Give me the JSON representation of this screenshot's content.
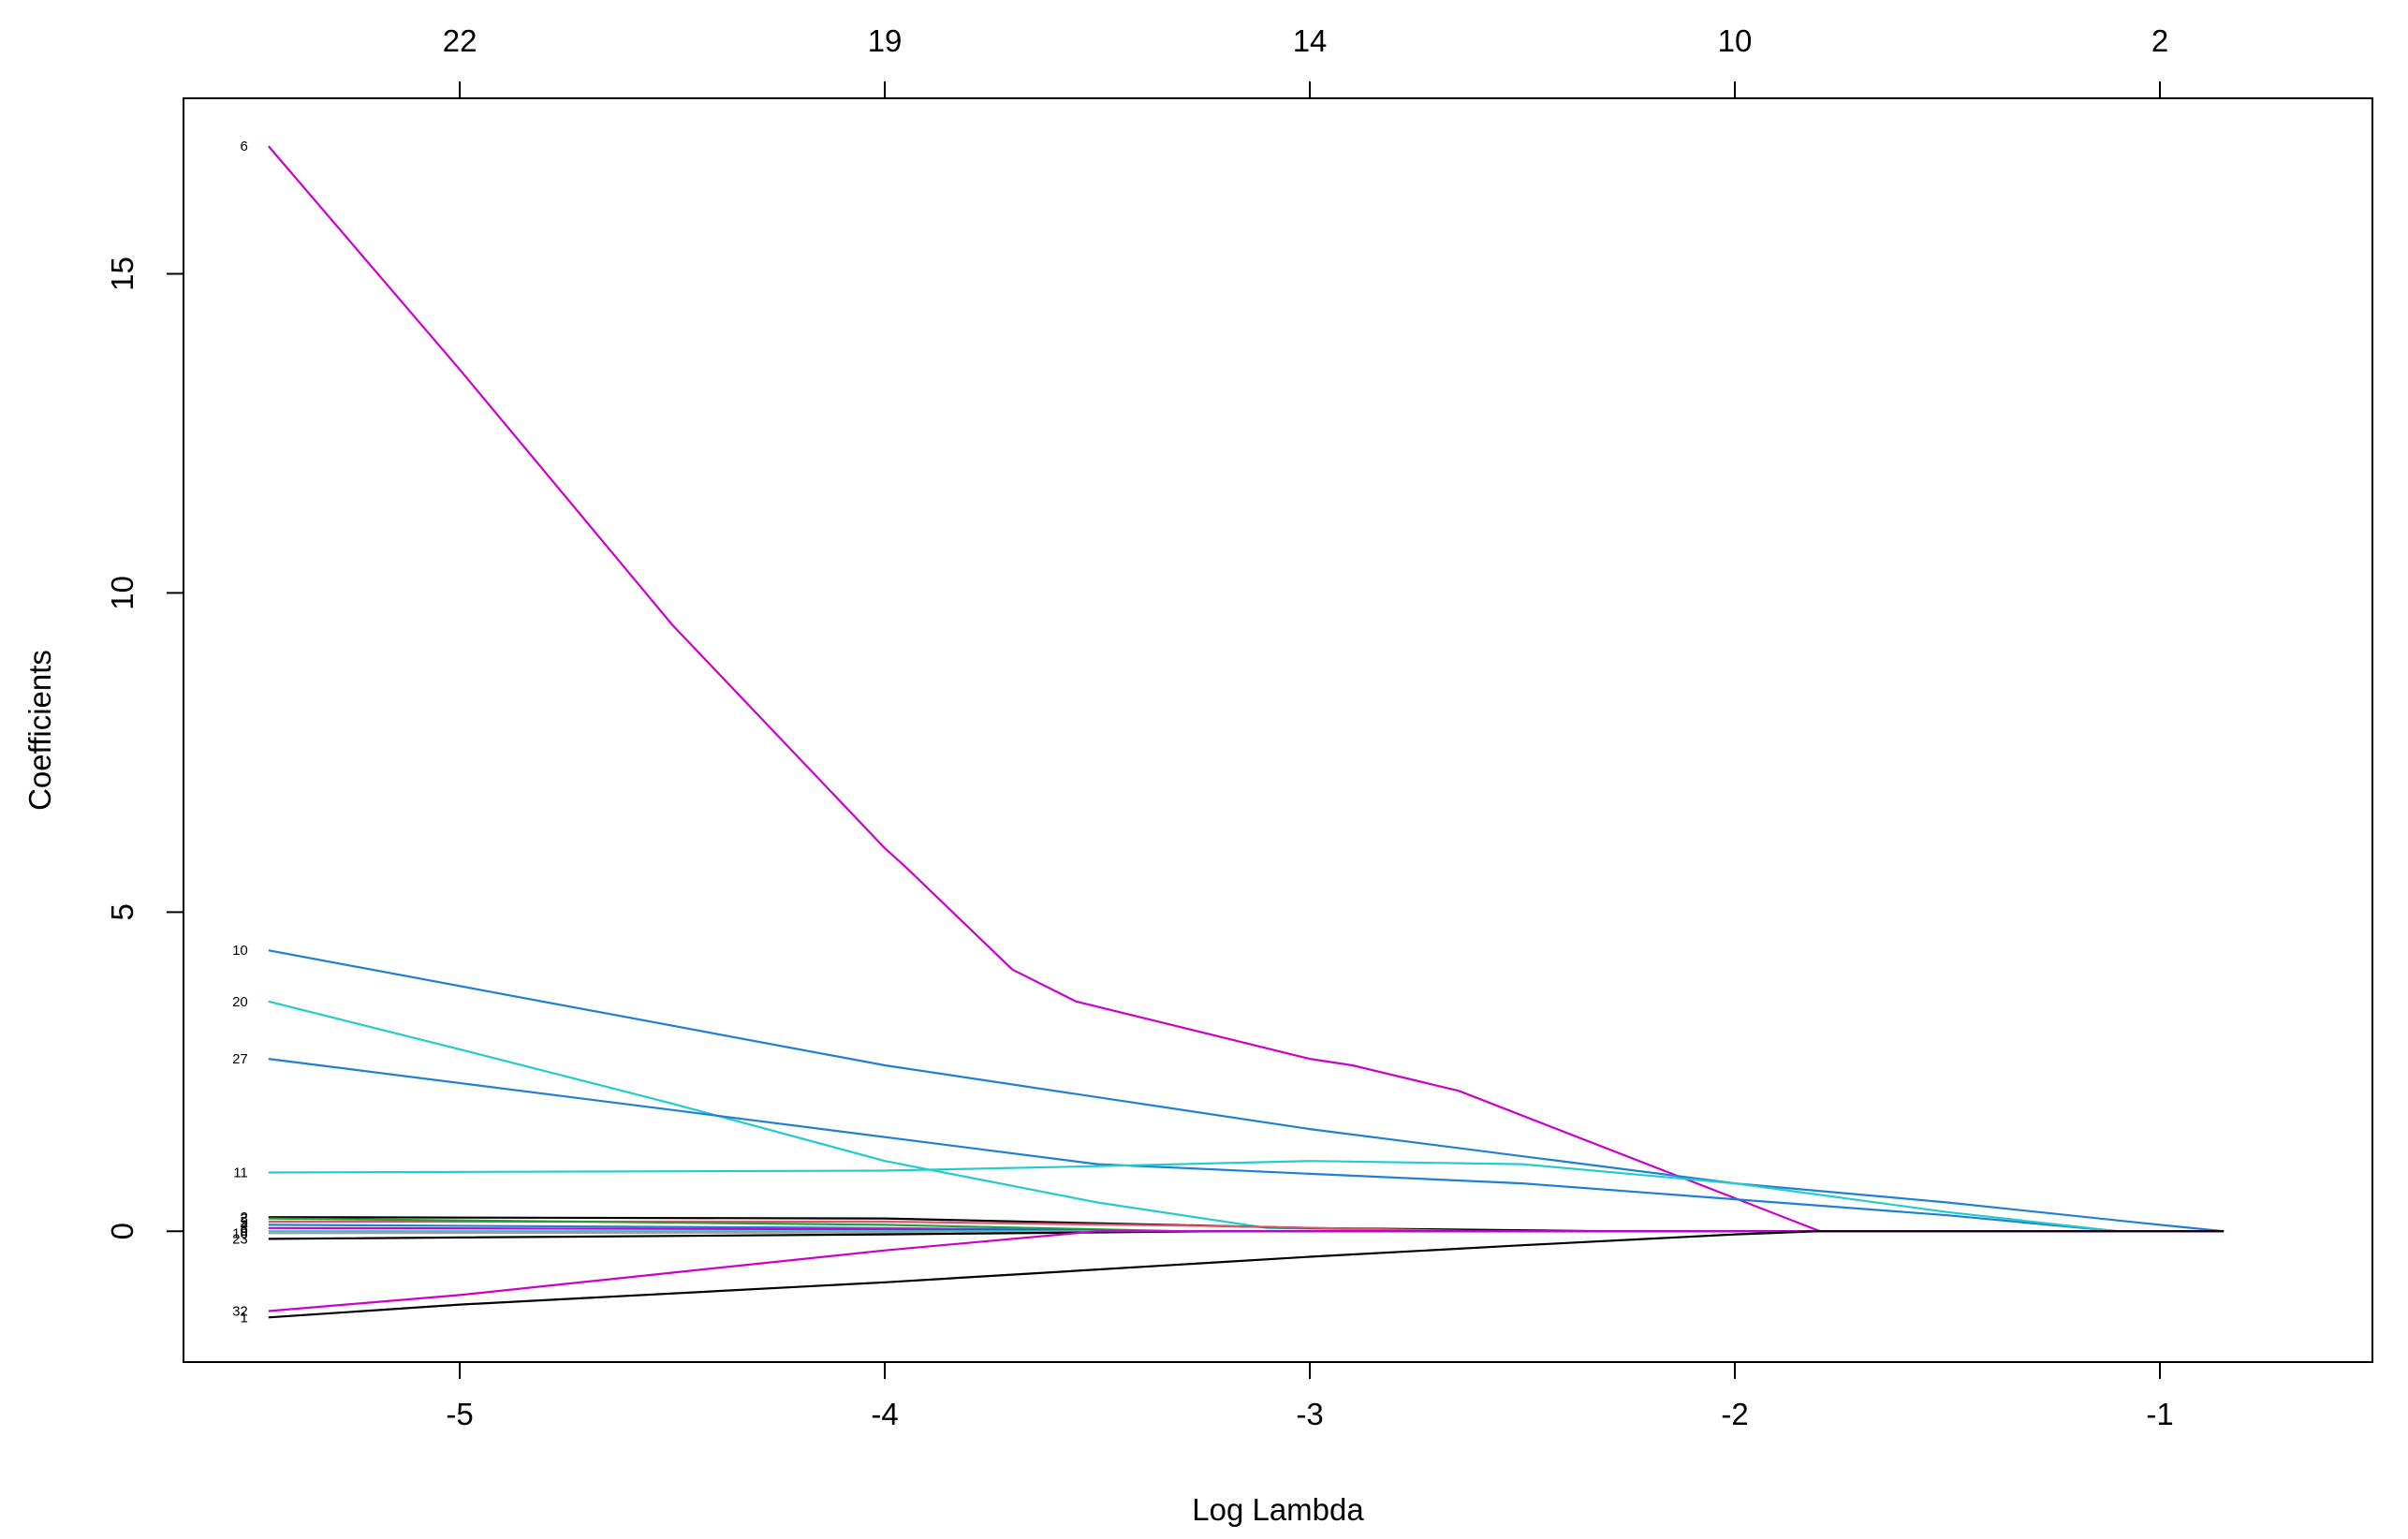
{
  "chart_data": {
    "type": "line",
    "title": "",
    "xlabel": "Log Lambda",
    "ylabel": "Coefficients",
    "xlim": [
      -5.65,
      -0.5
    ],
    "ylim": [
      -2.05,
      17.75
    ],
    "grid": false,
    "legend": "none",
    "x_ticks": [
      -5,
      -4,
      -3,
      -2,
      -1
    ],
    "x_tick_labels": [
      "-5",
      "-4",
      "-3",
      "-2",
      "-1"
    ],
    "y_ticks": [
      0,
      5,
      10,
      15
    ],
    "y_tick_labels": [
      "0",
      "5",
      "10",
      "15"
    ],
    "top_axis": {
      "at": [
        -5,
        -4,
        -3,
        -2,
        -1
      ],
      "labels": [
        "22",
        "19",
        "14",
        "10",
        "2"
      ]
    },
    "series": [
      {
        "label": "6",
        "color": "#CC00CC",
        "x": [
          -5.45,
          -5.0,
          -4.5,
          -4.0,
          -3.95,
          -3.7,
          -3.55,
          -3.0,
          -2.9,
          -2.65,
          -1.8,
          -0.85
        ],
        "y": [
          17.0,
          13.5,
          9.5,
          6.0,
          5.7,
          4.1,
          3.6,
          2.7,
          2.6,
          2.2,
          0.0,
          0.0
        ]
      },
      {
        "label": "10",
        "color": "#1E7FD6",
        "x": [
          -5.45,
          -4.0,
          -3.0,
          -2.0,
          -1.5,
          -1.0,
          -0.85
        ],
        "y": [
          4.4,
          2.6,
          1.6,
          0.75,
          0.45,
          0.1,
          0.0
        ]
      },
      {
        "label": "20",
        "color": "#22CCCC",
        "x": [
          -5.45,
          -5.0,
          -4.5,
          -4.0,
          -3.5,
          -3.1,
          -2.5,
          -0.85
        ],
        "y": [
          3.6,
          2.85,
          2.0,
          1.1,
          0.45,
          0.05,
          0.0,
          0.0
        ]
      },
      {
        "label": "27",
        "color": "#1E7FD6",
        "x": [
          -5.45,
          -4.5,
          -3.5,
          -2.5,
          -2.0,
          -1.5,
          -1.1,
          -0.85
        ],
        "y": [
          2.7,
          1.9,
          1.05,
          0.75,
          0.5,
          0.25,
          0.0,
          0.0
        ]
      },
      {
        "label": "11",
        "color": "#22CCCC",
        "x": [
          -5.45,
          -4.0,
          -3.5,
          -3.0,
          -2.5,
          -2.0,
          -1.5,
          -1.1,
          -0.85
        ],
        "y": [
          0.92,
          0.95,
          1.02,
          1.1,
          1.05,
          0.75,
          0.3,
          0.0,
          0.0
        ]
      },
      {
        "label": "2",
        "color": "#000000",
        "x": [
          -5.45,
          -4.0,
          -3.0,
          -2.3,
          -0.85
        ],
        "y": [
          0.22,
          0.2,
          0.05,
          0.0,
          0.0
        ]
      },
      {
        "label": "5",
        "color": "#DF536B",
        "x": [
          -5.45,
          -4.0,
          -3.2,
          -2.6,
          -0.85
        ],
        "y": [
          0.15,
          0.15,
          0.08,
          0.0,
          0.0
        ]
      },
      {
        "label": "3",
        "color": "#22A033",
        "x": [
          -5.45,
          -4.0,
          -3.3,
          -0.85
        ],
        "y": [
          0.2,
          0.1,
          0.0,
          0.0
        ]
      },
      {
        "label": "4",
        "color": "#1E7FD6",
        "x": [
          -5.45,
          -4.0,
          -3.3,
          -0.85
        ],
        "y": [
          0.1,
          0.05,
          0.0,
          0.0
        ]
      },
      {
        "label": "8",
        "color": "#CC00CC",
        "x": [
          -5.45,
          -4.0,
          -3.3,
          -0.85
        ],
        "y": [
          0.05,
          0.03,
          0.0,
          0.0
        ]
      },
      {
        "label": "9",
        "color": "#22CCCC",
        "x": [
          -5.45,
          -4.0,
          -3.3,
          -0.85
        ],
        "y": [
          0.0,
          0.0,
          0.0,
          0.0
        ]
      },
      {
        "label": "16",
        "color": "#9E9E9E",
        "x": [
          -5.45,
          -4.0,
          -3.3,
          -0.85
        ],
        "y": [
          -0.03,
          -0.02,
          0.0,
          0.0
        ]
      },
      {
        "label": "23",
        "color": "#000000",
        "x": [
          -5.45,
          -4.0,
          -3.2,
          -0.85
        ],
        "y": [
          -0.12,
          -0.05,
          0.0,
          0.0
        ]
      },
      {
        "label": "32",
        "color": "#CC00CC",
        "x": [
          -5.45,
          -5.0,
          -4.5,
          -4.0,
          -3.5,
          -3.3,
          -0.85
        ],
        "y": [
          -1.25,
          -1.0,
          -0.65,
          -0.3,
          0.0,
          0.0,
          0.0
        ]
      },
      {
        "label": "1",
        "color": "#000000",
        "x": [
          -5.45,
          -5.0,
          -4.0,
          -3.0,
          -2.5,
          -2.0,
          -1.8,
          -0.85
        ],
        "y": [
          -1.35,
          -1.15,
          -0.8,
          -0.4,
          -0.22,
          -0.05,
          0.0,
          0.0
        ]
      }
    ]
  }
}
